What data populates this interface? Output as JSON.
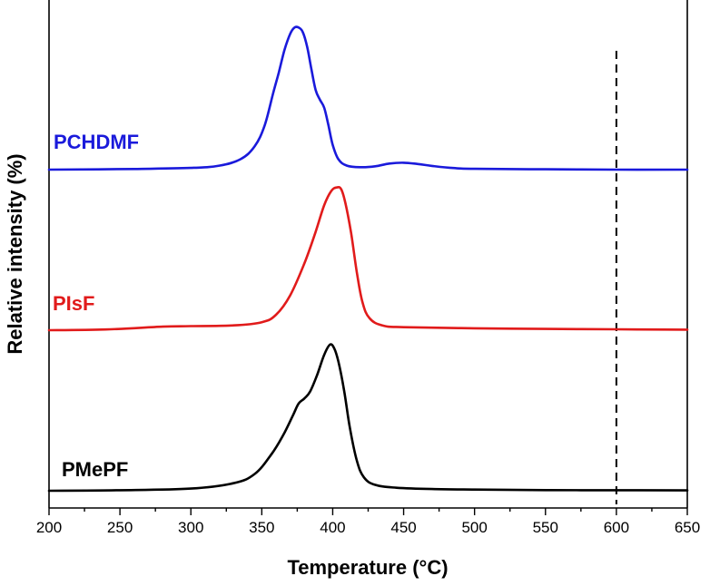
{
  "chart_data": {
    "type": "line",
    "xlabel": "Temperature (°C)",
    "ylabel": "Relative intensity (%)",
    "xlim": [
      200,
      650
    ],
    "x_ticks": [
      200,
      250,
      300,
      350,
      400,
      450,
      500,
      550,
      600,
      650
    ],
    "grid": false,
    "legend": "inline labels at left of each curve",
    "reference_line": {
      "x": 600,
      "style": "dashed",
      "color": "#000000"
    },
    "series": [
      {
        "name": "PCHDMF",
        "color": "#1a1adb",
        "baseline": 2.5,
        "points": [
          [
            200,
            2.5
          ],
          [
            260,
            2.9
          ],
          [
            300,
            3.6
          ],
          [
            320,
            5
          ],
          [
            335,
            9
          ],
          [
            345,
            17
          ],
          [
            352,
            30
          ],
          [
            358,
            50
          ],
          [
            362,
            63
          ],
          [
            366,
            77
          ],
          [
            370,
            87
          ],
          [
            373,
            91
          ],
          [
            376,
            91
          ],
          [
            379,
            88
          ],
          [
            382,
            79
          ],
          [
            385,
            65
          ],
          [
            388,
            52
          ],
          [
            391,
            46
          ],
          [
            394,
            41
          ],
          [
            397,
            30
          ],
          [
            400,
            18
          ],
          [
            404,
            9
          ],
          [
            410,
            5
          ],
          [
            420,
            4
          ],
          [
            430,
            4.6
          ],
          [
            440,
            6.3
          ],
          [
            450,
            6.8
          ],
          [
            460,
            6
          ],
          [
            470,
            4.8
          ],
          [
            485,
            3.5
          ],
          [
            500,
            3
          ],
          [
            550,
            2.7
          ],
          [
            600,
            2.5
          ],
          [
            650,
            2.5
          ]
        ]
      },
      {
        "name": "PIsF",
        "color": "#e11b1b",
        "baseline": 0.3,
        "points": [
          [
            200,
            0.3
          ],
          [
            240,
            0.7
          ],
          [
            280,
            2.3
          ],
          [
            300,
            2.6
          ],
          [
            330,
            3
          ],
          [
            350,
            4.8
          ],
          [
            360,
            9
          ],
          [
            370,
            20
          ],
          [
            380,
            38
          ],
          [
            388,
            56
          ],
          [
            394,
            71
          ],
          [
            399,
            79
          ],
          [
            403,
            81
          ],
          [
            406,
            80
          ],
          [
            409,
            72
          ],
          [
            413,
            55
          ],
          [
            417,
            33
          ],
          [
            421,
            16
          ],
          [
            426,
            7
          ],
          [
            435,
            3
          ],
          [
            450,
            2
          ],
          [
            500,
            1.4
          ],
          [
            550,
            1
          ],
          [
            600,
            0.8
          ],
          [
            650,
            0.6
          ]
        ]
      },
      {
        "name": "PMePF",
        "color": "#000000",
        "baseline": 0.0,
        "points": [
          [
            200,
            0
          ],
          [
            250,
            0.3
          ],
          [
            300,
            1.3
          ],
          [
            330,
            4.5
          ],
          [
            345,
            10
          ],
          [
            357,
            22
          ],
          [
            365,
            33
          ],
          [
            372,
            45
          ],
          [
            376,
            52
          ],
          [
            380,
            55
          ],
          [
            384,
            59
          ],
          [
            389,
            69
          ],
          [
            394,
            81
          ],
          [
            398,
            87
          ],
          [
            401,
            85
          ],
          [
            404,
            77
          ],
          [
            408,
            60
          ],
          [
            412,
            38
          ],
          [
            417,
            18
          ],
          [
            422,
            8
          ],
          [
            430,
            3.5
          ],
          [
            445,
            1.8
          ],
          [
            470,
            1
          ],
          [
            500,
            0.7
          ],
          [
            550,
            0.4
          ],
          [
            600,
            0.3
          ],
          [
            650,
            0.2
          ]
        ]
      }
    ]
  },
  "labels": {
    "pchdmf": "PCHDMF",
    "pisf": "PIsF",
    "pmepf": "PMePF"
  }
}
